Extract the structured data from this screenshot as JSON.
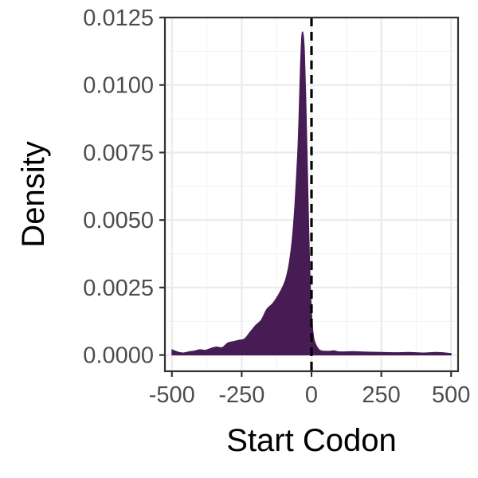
{
  "chart_data": {
    "type": "area",
    "title": "",
    "xlabel": "Start Codon",
    "ylabel": "Density",
    "xlim": [
      -525,
      525
    ],
    "ylim": [
      -0.0006,
      0.0125
    ],
    "x_ticks": [
      -500,
      -250,
      0,
      250,
      500
    ],
    "x_tick_labels": [
      "-500",
      "-250",
      "0",
      "250",
      "500"
    ],
    "y_ticks": [
      0,
      0.0025,
      0.005,
      0.0075,
      0.01,
      0.0125
    ],
    "y_tick_labels": [
      "0.0000",
      "0.0025",
      "0.0050",
      "0.0075",
      "0.0100",
      "0.0125"
    ],
    "grid": true,
    "reference_line": {
      "x": 0,
      "style": "dashed",
      "color": "#000000"
    },
    "fill_color": "#471c54",
    "series": [
      {
        "x": [
          -500,
          -480,
          -460,
          -440,
          -420,
          -400,
          -380,
          -360,
          -340,
          -320,
          -300,
          -280,
          -260,
          -240,
          -220,
          -200,
          -180,
          -160,
          -140,
          -120,
          -100,
          -90,
          -80,
          -70,
          -60,
          -50,
          -45,
          -40,
          -35,
          -30,
          -25,
          -20,
          -15,
          -10,
          -5,
          0,
          5,
          10,
          20,
          30,
          40,
          60,
          80,
          100,
          150,
          200,
          250,
          300,
          350,
          400,
          450,
          500
        ],
        "y": [
          0.0002,
          0.00012,
          8e-05,
          0.00012,
          0.00015,
          0.0002,
          0.00018,
          0.00025,
          0.0003,
          0.00028,
          0.00045,
          0.0005,
          0.00055,
          0.0006,
          0.00085,
          0.0011,
          0.0013,
          0.0017,
          0.0019,
          0.0022,
          0.0026,
          0.0029,
          0.0034,
          0.0042,
          0.0055,
          0.0074,
          0.0088,
          0.0106,
          0.0118,
          0.0119,
          0.0112,
          0.0094,
          0.0072,
          0.0048,
          0.0028,
          0.0016,
          0.0009,
          0.00055,
          0.0003,
          0.00018,
          0.00015,
          0.00014,
          0.00016,
          0.00012,
          0.00013,
          0.00011,
          0.0001,
          9e-05,
          0.0001,
          8e-05,
          0.0001,
          6e-05
        ]
      }
    ]
  }
}
